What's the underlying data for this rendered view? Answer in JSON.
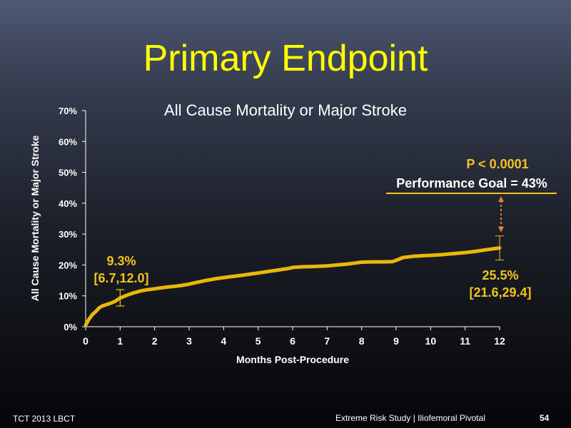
{
  "slide": {
    "title": "Primary Endpoint",
    "footer_left": "TCT 2013 LBCT",
    "footer_right": "Extreme Risk Study | Iliofemoral Pivotal",
    "page_number": "54"
  },
  "colors": {
    "title": "#ffff00",
    "curve": "#e8b80b",
    "annotation": "#f2c31a",
    "arrow": "#e8803a",
    "axis": "#ffffff"
  },
  "chart_data": {
    "type": "line",
    "title": "All Cause Mortality or Major Stroke",
    "xlabel": "Months Post-Procedure",
    "ylabel": "All Cause Mortality or Major Stroke",
    "xlim": [
      0,
      12
    ],
    "ylim": [
      0,
      70
    ],
    "x_ticks": [
      "0",
      "1",
      "2",
      "3",
      "4",
      "5",
      "6",
      "7",
      "8",
      "9",
      "10",
      "11",
      "12"
    ],
    "y_ticks": [
      "0%",
      "10%",
      "20%",
      "30%",
      "40%",
      "50%",
      "60%",
      "70%"
    ],
    "grid": false,
    "series": [
      {
        "x": [
          0,
          0.1,
          0.2,
          0.3,
          0.4,
          0.5,
          0.7,
          0.85,
          1.0,
          1.2,
          1.4,
          1.6,
          1.8,
          2.0,
          2.2,
          2.4,
          2.6,
          2.8,
          3.0,
          3.2,
          3.5,
          3.8,
          4.0,
          4.2,
          4.5,
          4.8,
          5.0,
          5.3,
          5.6,
          5.9,
          6.0,
          6.3,
          6.6,
          7.0,
          7.3,
          7.6,
          7.8,
          8.0,
          8.3,
          8.6,
          8.9,
          9.0,
          9.2,
          9.5,
          9.8,
          10.0,
          10.3,
          10.6,
          11.0,
          11.3,
          11.6,
          12.0
        ],
        "y": [
          0.5,
          2.5,
          4.0,
          5.0,
          6.2,
          6.8,
          7.5,
          8.2,
          9.3,
          10.2,
          11.0,
          11.6,
          12.0,
          12.3,
          12.6,
          12.9,
          13.1,
          13.4,
          13.8,
          14.3,
          15.0,
          15.6,
          15.9,
          16.2,
          16.6,
          17.1,
          17.4,
          17.9,
          18.4,
          18.9,
          19.2,
          19.4,
          19.5,
          19.7,
          20.0,
          20.3,
          20.6,
          20.9,
          21.0,
          21.0,
          21.1,
          21.5,
          22.4,
          22.8,
          23.0,
          23.1,
          23.3,
          23.6,
          24.0,
          24.4,
          24.9,
          25.5
        ]
      }
    ],
    "annotations": {
      "m1_value": "9.3%",
      "m1_ci": "[6.7,12.0]",
      "m12_value": "25.5%",
      "m12_ci": "[21.6,29.4]",
      "p_value": "P < 0.0001",
      "goal_label": "Performance Goal = 43%"
    },
    "error_bars": [
      {
        "x": 1,
        "y": 9.3,
        "low": 6.7,
        "high": 12.0
      },
      {
        "x": 12,
        "y": 25.5,
        "low": 21.6,
        "high": 29.4
      }
    ]
  }
}
